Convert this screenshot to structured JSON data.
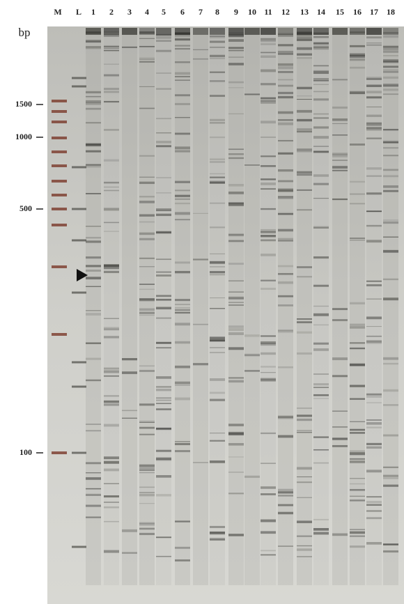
{
  "unit_label": "bp",
  "lane_labels": [
    "M",
    "L",
    "1",
    "2",
    "3",
    "4",
    "5",
    "6",
    "7",
    "8",
    "9",
    "10",
    "11",
    "12",
    "13",
    "14",
    "15",
    "16",
    "17",
    "18"
  ],
  "size_labels": [
    "1500",
    "1000",
    "500",
    "100"
  ]
}
